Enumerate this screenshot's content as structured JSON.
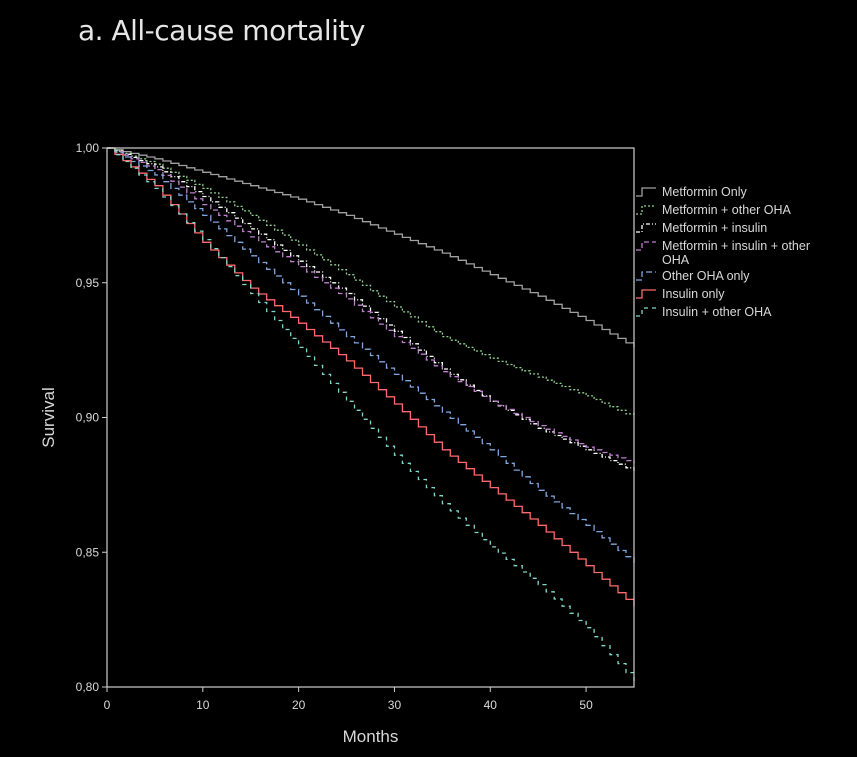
{
  "chart_data": {
    "type": "line",
    "title": "a. All-cause mortality",
    "xlabel": "Months",
    "ylabel": "Survival",
    "xlim": [
      0,
      55
    ],
    "ylim": [
      0.8,
      1.0
    ],
    "x_ticks": [
      "0",
      "10",
      "20",
      "30",
      "40",
      "50"
    ],
    "y_ticks": [
      "0,80",
      "0,85",
      "0,90",
      "0,95",
      "1,00"
    ],
    "grid": false,
    "legend_position": "right",
    "series": [
      {
        "name": "Metformin Only",
        "color": "#a0a0a0",
        "dash": "",
        "x": [
          0,
          5,
          10,
          15,
          20,
          25,
          30,
          35,
          40,
          45,
          50,
          55
        ],
        "y": [
          1.0,
          0.996,
          0.991,
          0.986,
          0.981,
          0.975,
          0.968,
          0.961,
          0.953,
          0.945,
          0.936,
          0.926
        ]
      },
      {
        "name": "Metformin + other OHA",
        "color": "#8fd18f",
        "dash": "2,2",
        "x": [
          0,
          5,
          10,
          15,
          20,
          25,
          30,
          35,
          40,
          45,
          50,
          55
        ],
        "y": [
          1.0,
          0.994,
          0.985,
          0.975,
          0.964,
          0.953,
          0.941,
          0.93,
          0.922,
          0.915,
          0.908,
          0.9
        ]
      },
      {
        "name": "Metformin + insulin",
        "color": "#ffffff",
        "dash": "4,2,1,2",
        "x": [
          0,
          5,
          10,
          15,
          20,
          25,
          30,
          35,
          40,
          45,
          50,
          55
        ],
        "y": [
          1.0,
          0.993,
          0.982,
          0.97,
          0.958,
          0.946,
          0.932,
          0.918,
          0.906,
          0.896,
          0.888,
          0.88
        ]
      },
      {
        "name": "Metformin + insulin + other OHA",
        "color": "#c080d0",
        "dash": "5,3",
        "x": [
          0,
          5,
          10,
          15,
          20,
          25,
          30,
          35,
          40,
          45,
          50,
          55
        ],
        "y": [
          1.0,
          0.992,
          0.979,
          0.967,
          0.956,
          0.944,
          0.93,
          0.917,
          0.906,
          0.897,
          0.889,
          0.883
        ]
      },
      {
        "name": "Other OHA only",
        "color": "#7fa6e0",
        "dash": "6,3",
        "x": [
          0,
          5,
          10,
          15,
          20,
          25,
          30,
          35,
          40,
          45,
          50,
          55
        ],
        "y": [
          1.0,
          0.99,
          0.975,
          0.96,
          0.945,
          0.93,
          0.916,
          0.902,
          0.888,
          0.873,
          0.86,
          0.846
        ]
      },
      {
        "name": "Insulin only",
        "color": "#ff6a6a",
        "dash": "",
        "x": [
          0,
          5,
          10,
          15,
          20,
          25,
          30,
          35,
          40,
          45,
          50,
          55
        ],
        "y": [
          1.0,
          0.986,
          0.965,
          0.948,
          0.935,
          0.921,
          0.905,
          0.888,
          0.874,
          0.86,
          0.845,
          0.83
        ]
      },
      {
        "name": "Insulin + other OHA",
        "color": "#80d8c8",
        "dash": "4,4",
        "x": [
          0,
          5,
          10,
          15,
          20,
          25,
          30,
          35,
          40,
          45,
          50,
          55
        ],
        "y": [
          1.0,
          0.985,
          0.966,
          0.946,
          0.926,
          0.906,
          0.886,
          0.868,
          0.852,
          0.838,
          0.822,
          0.802
        ]
      }
    ]
  }
}
